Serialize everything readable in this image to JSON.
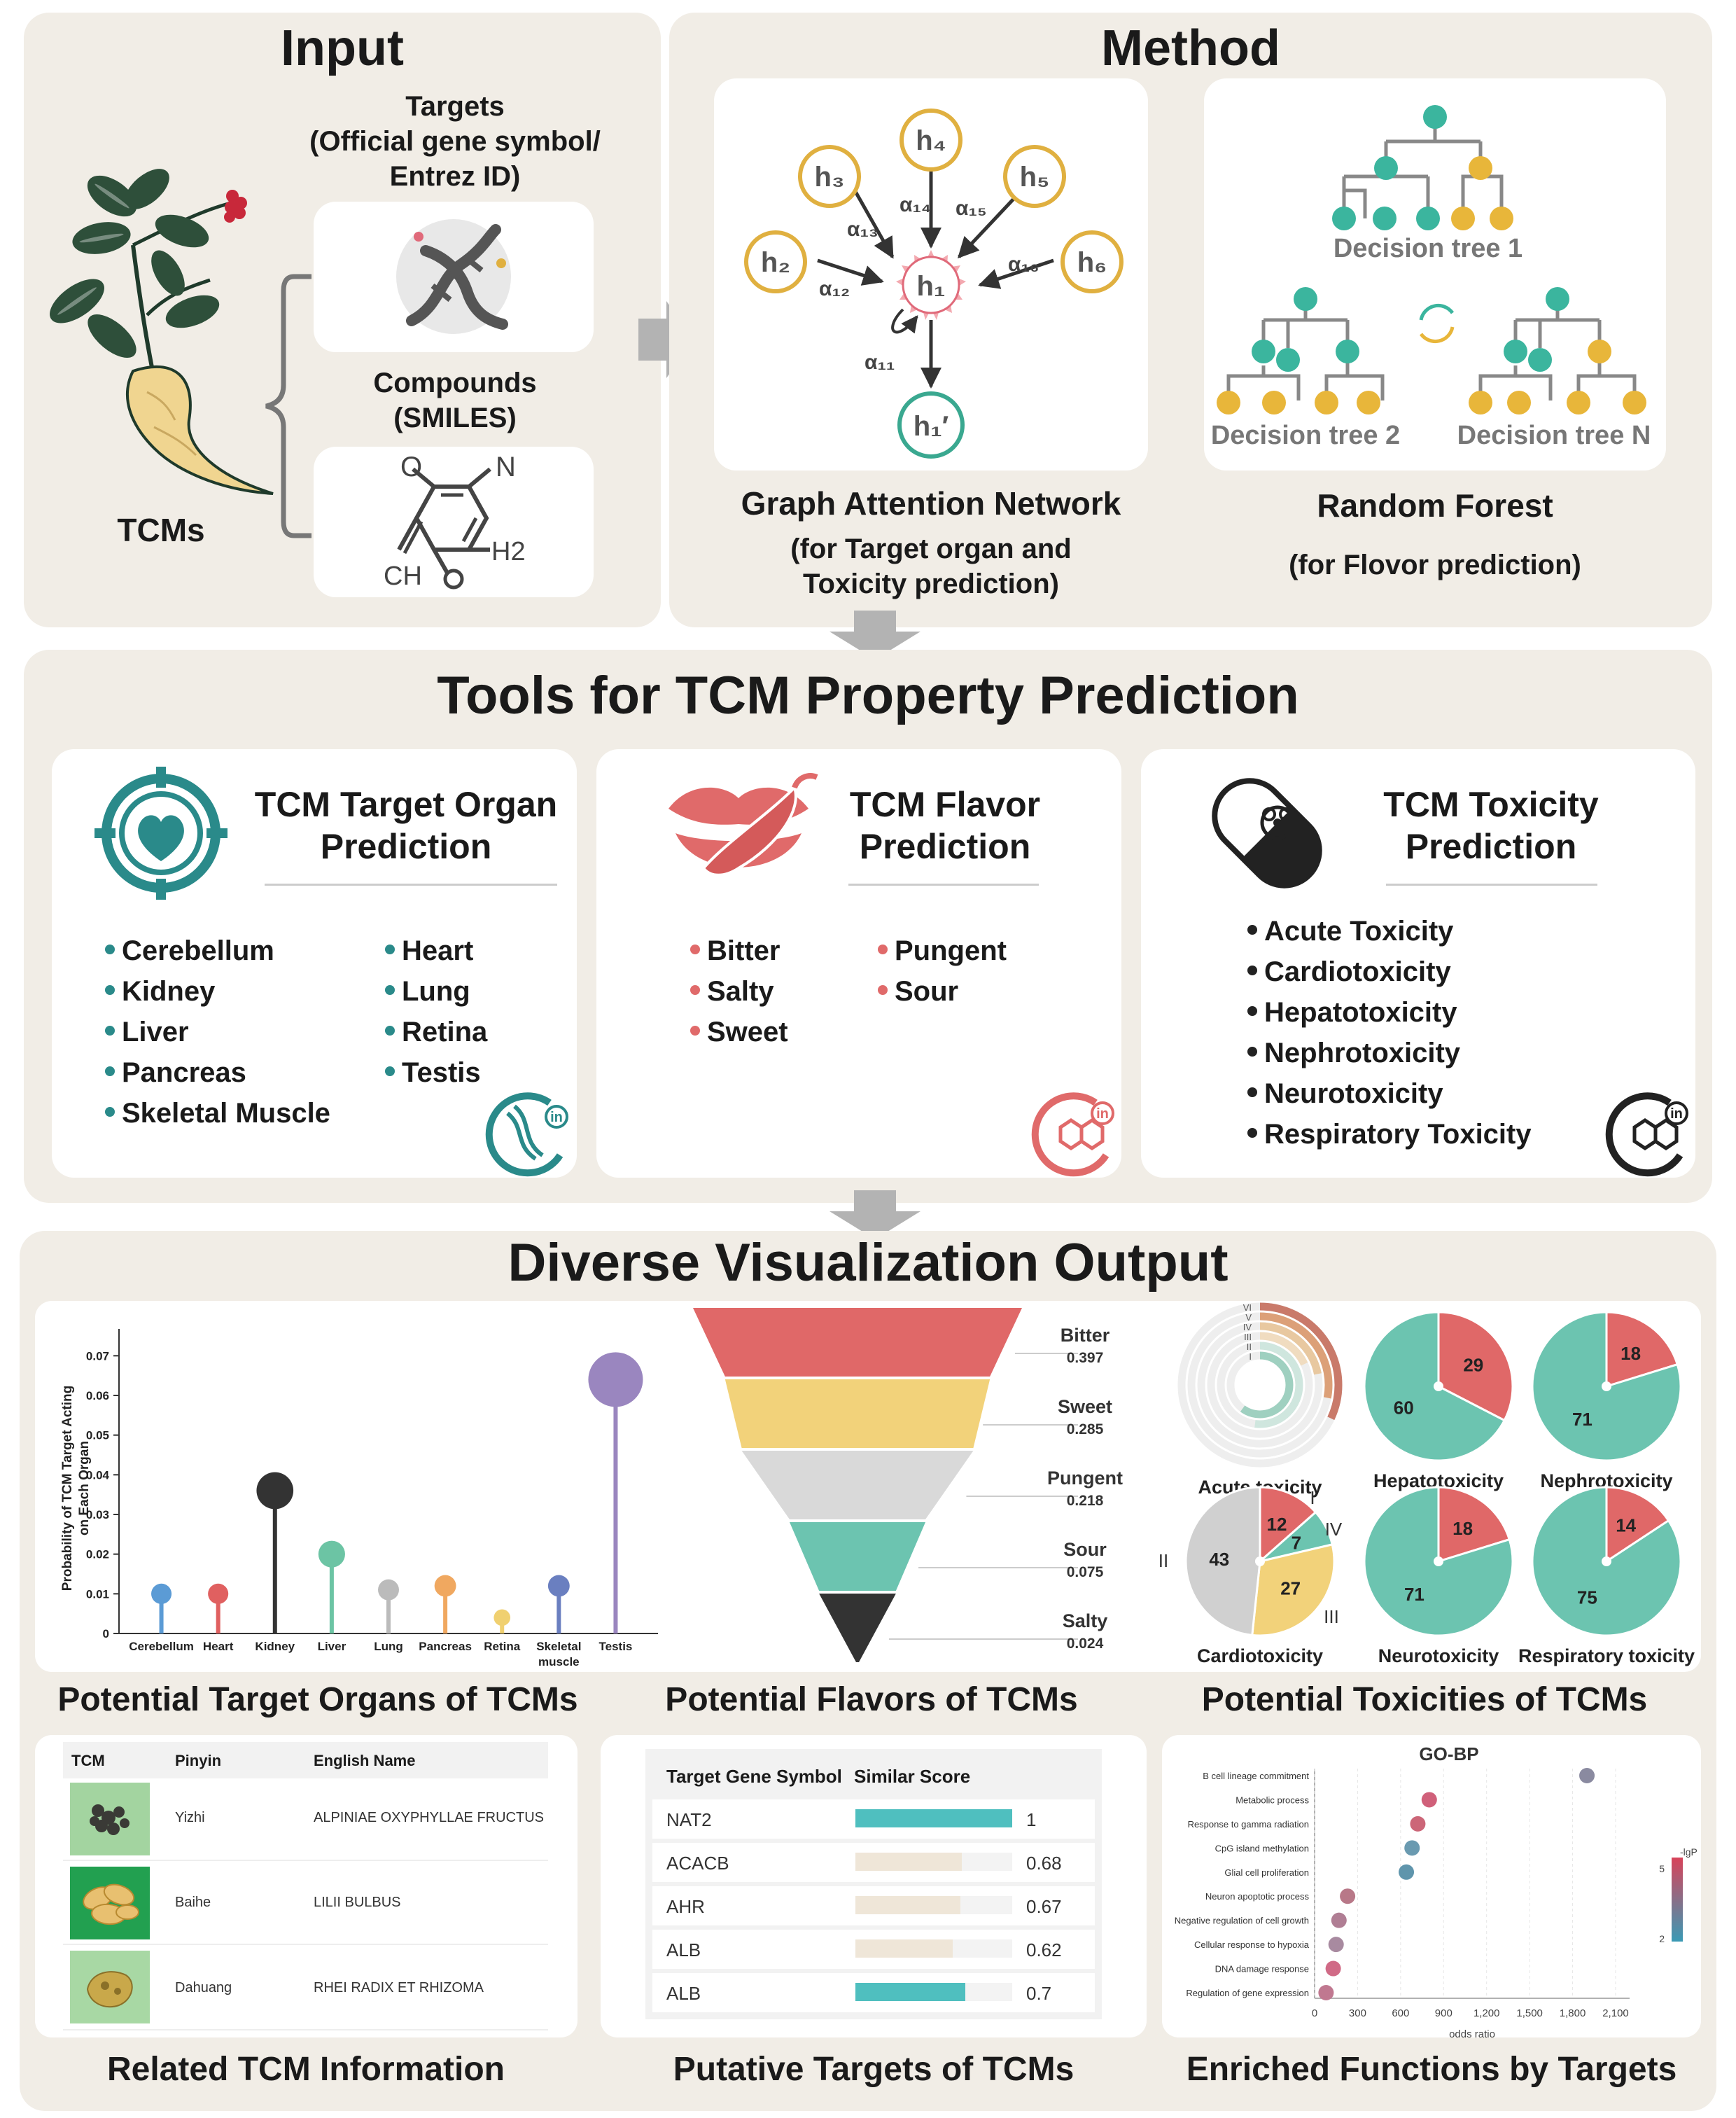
{
  "input": {
    "title": "Input",
    "targets_label": "Targets",
    "targets_sub1": "(Official gene symbol/",
    "targets_sub2": "Entrez ID)",
    "compounds_label": "Compounds",
    "compounds_sub": "(SMILES)",
    "tcms_label": "TCMs",
    "mol_o": "O",
    "mol_n": "N",
    "mol_h2": "H2",
    "mol_ch": "CH"
  },
  "method": {
    "title": "Method",
    "gat_title": "Graph Attention Network",
    "gat_sub1": "(for Target organ and",
    "gat_sub2": "Toxicity prediction)",
    "rf_title": "Random Forest",
    "rf_sub": "(for Flovor prediction)",
    "tree1": "Decision tree 1",
    "tree2": "Decision tree 2",
    "treeN": "Decision tree N",
    "nodes": {
      "h1": "h₁",
      "h2": "h₂",
      "h3": "h₃",
      "h4": "h₄",
      "h5": "h₅",
      "h6": "h₆",
      "h1p": "h₁′"
    },
    "alphas": {
      "a11": "α₁₁",
      "a12": "α₁₂",
      "a13": "α₁₃",
      "a14": "α₁₄",
      "a15": "α₁₅",
      "a16": "α₁₆"
    }
  },
  "tools": {
    "title": "Tools for TCM Property Prediction",
    "organ": {
      "title1": "TCM Target Organ",
      "title2": "Prediction",
      "left": [
        "Cerebellum",
        "Kidney",
        "Liver",
        "Pancreas",
        "Skeletal Muscle"
      ],
      "right": [
        "Heart",
        "Lung",
        "Retina",
        "Testis"
      ],
      "color": "#2a8a8a"
    },
    "flavor": {
      "title1": "TCM Flavor",
      "title2": "Prediction",
      "left": [
        "Bitter",
        "Salty",
        "Sweet"
      ],
      "right": [
        "Pungent",
        "Sour"
      ],
      "color": "#e06a6a"
    },
    "toxicity": {
      "title1": "TCM Toxicity",
      "title2": "Prediction",
      "items": [
        "Acute Toxicity",
        "Cardiotoxicity",
        "Hepatotoxicity",
        "Nephrotoxicity",
        "Neurotoxicity",
        "Respiratory Toxicity"
      ],
      "color": "#222222"
    }
  },
  "viz": {
    "title": "Diverse Visualization Output",
    "organs_caption": "Potential Target Organs of TCMs",
    "flavors_caption": "Potential Flavors of TCMs",
    "toxicities_caption": "Potential Toxicities of TCMs",
    "tcm_info_caption": "Related TCM Information",
    "targets_caption": "Putative Targets of TCMs",
    "functions_caption": "Enriched Functions by Targets"
  },
  "chart_data": [
    {
      "type": "lollipop",
      "ylabel": "Probability of TCM Target Acting on Each Organ",
      "ylim": [
        0,
        0.075
      ],
      "yticks": [
        "0",
        "0.01",
        "0.02",
        "0.03",
        "0.04",
        "0.05",
        "0.06",
        "0.07"
      ],
      "categories": [
        "Cerebellum",
        "Heart",
        "Kidney",
        "Liver",
        "Lung",
        "Pancreas",
        "Retina",
        "Skeletal muscle",
        "Testis"
      ],
      "values": [
        0.01,
        0.01,
        0.036,
        0.02,
        0.011,
        0.012,
        0.004,
        0.012,
        0.064
      ],
      "colors": [
        "#5b9bd5",
        "#e06060",
        "#333333",
        "#6cc4a4",
        "#bbbbbb",
        "#f0a860",
        "#f0d070",
        "#6a7fc0",
        "#9a86bf"
      ]
    },
    {
      "type": "funnel",
      "categories": [
        "Bitter",
        "Sweet",
        "Pungent",
        "Sour",
        "Salty"
      ],
      "values": [
        0.397,
        0.285,
        0.218,
        0.075,
        0.024
      ],
      "labels": [
        "0.397",
        "0.285",
        "0.218",
        "0.075",
        "0.024"
      ],
      "colors": [
        "#e06868",
        "#f2d27a",
        "#d9d9d9",
        "#6cc4b0",
        "#333333"
      ]
    },
    {
      "type": "pie",
      "charts": [
        {
          "name": "Hepatotoxicity",
          "values": [
            29,
            60
          ],
          "labels": [
            "29",
            "60"
          ]
        },
        {
          "name": "Nephrotoxicity",
          "values": [
            18,
            71
          ],
          "labels": [
            "18",
            "71"
          ]
        },
        {
          "name": "Neurotoxicity",
          "values": [
            18,
            71
          ],
          "labels": [
            "18",
            "71"
          ]
        },
        {
          "name": "Respiratory toxicity",
          "values": [
            14,
            75
          ],
          "labels": [
            "14",
            "75"
          ]
        }
      ],
      "colors": [
        "#e06868",
        "#6cc4b0"
      ]
    },
    {
      "type": "pie",
      "name": "Cardiotoxicity",
      "categories": [
        "I",
        "IV",
        "III",
        "II"
      ],
      "values": [
        12,
        7,
        27,
        43
      ],
      "labels": [
        "12",
        "7",
        "27",
        "43"
      ],
      "colors": [
        "#e06868",
        "#6cc4b0",
        "#f2d27a",
        "#d0d0d0"
      ]
    },
    {
      "type": "radial-bar",
      "name": "Acute toxicity",
      "categories": [
        "VI",
        "V",
        "IV",
        "III",
        "II",
        "I"
      ]
    },
    {
      "type": "table",
      "columns": [
        "TCM",
        "Pinyin",
        "English Name"
      ],
      "rows": [
        [
          "",
          "Yizhi",
          "ALPINIAE OXYPHYLLAE FRUCTUS"
        ],
        [
          "",
          "Baihe",
          "LILII BULBUS"
        ],
        [
          "",
          "Dahuang",
          "RHEI RADIX ET RHIZOMA"
        ]
      ]
    },
    {
      "type": "bar",
      "columns": [
        "Target Gene Symbol",
        "Similar Score"
      ],
      "categories": [
        "NAT2",
        "ACACB",
        "AHR",
        "ALB",
        "ALB"
      ],
      "values": [
        1,
        0.68,
        0.67,
        0.62,
        0.7
      ],
      "labels": [
        "1",
        "0.68",
        "0.67",
        "0.62",
        "0.7"
      ],
      "highlight": [
        true,
        false,
        false,
        false,
        true
      ]
    },
    {
      "type": "scatter",
      "title": "GO-BP",
      "xlabel": "odds ratio",
      "xticks": [
        "0",
        "300",
        "600",
        "900",
        "1,200",
        "1,500",
        "1,800",
        "2,100"
      ],
      "xlim": [
        0,
        2100
      ],
      "categories": [
        "B cell lineage commitment",
        "Metabolic process",
        "Response to gamma radiation",
        "CpG island methylation",
        "Glial cell proliferation",
        "Neuron apoptotic process",
        "Negative regulation of cell growth",
        "Cellular response to hypoxia",
        "DNA damage response",
        "Regulation of gene expression"
      ],
      "values": [
        1900,
        800,
        720,
        680,
        640,
        230,
        170,
        150,
        130,
        80
      ],
      "legend_title": "-lgP",
      "legend_ticks": [
        "5",
        "2"
      ],
      "point_colors": [
        "#8a8aa0",
        "#d0607a",
        "#cc6678",
        "#6a9ab0",
        "#5f95ac",
        "#b87888",
        "#b07e94",
        "#a88aa0",
        "#d06a86",
        "#c07890"
      ]
    }
  ]
}
